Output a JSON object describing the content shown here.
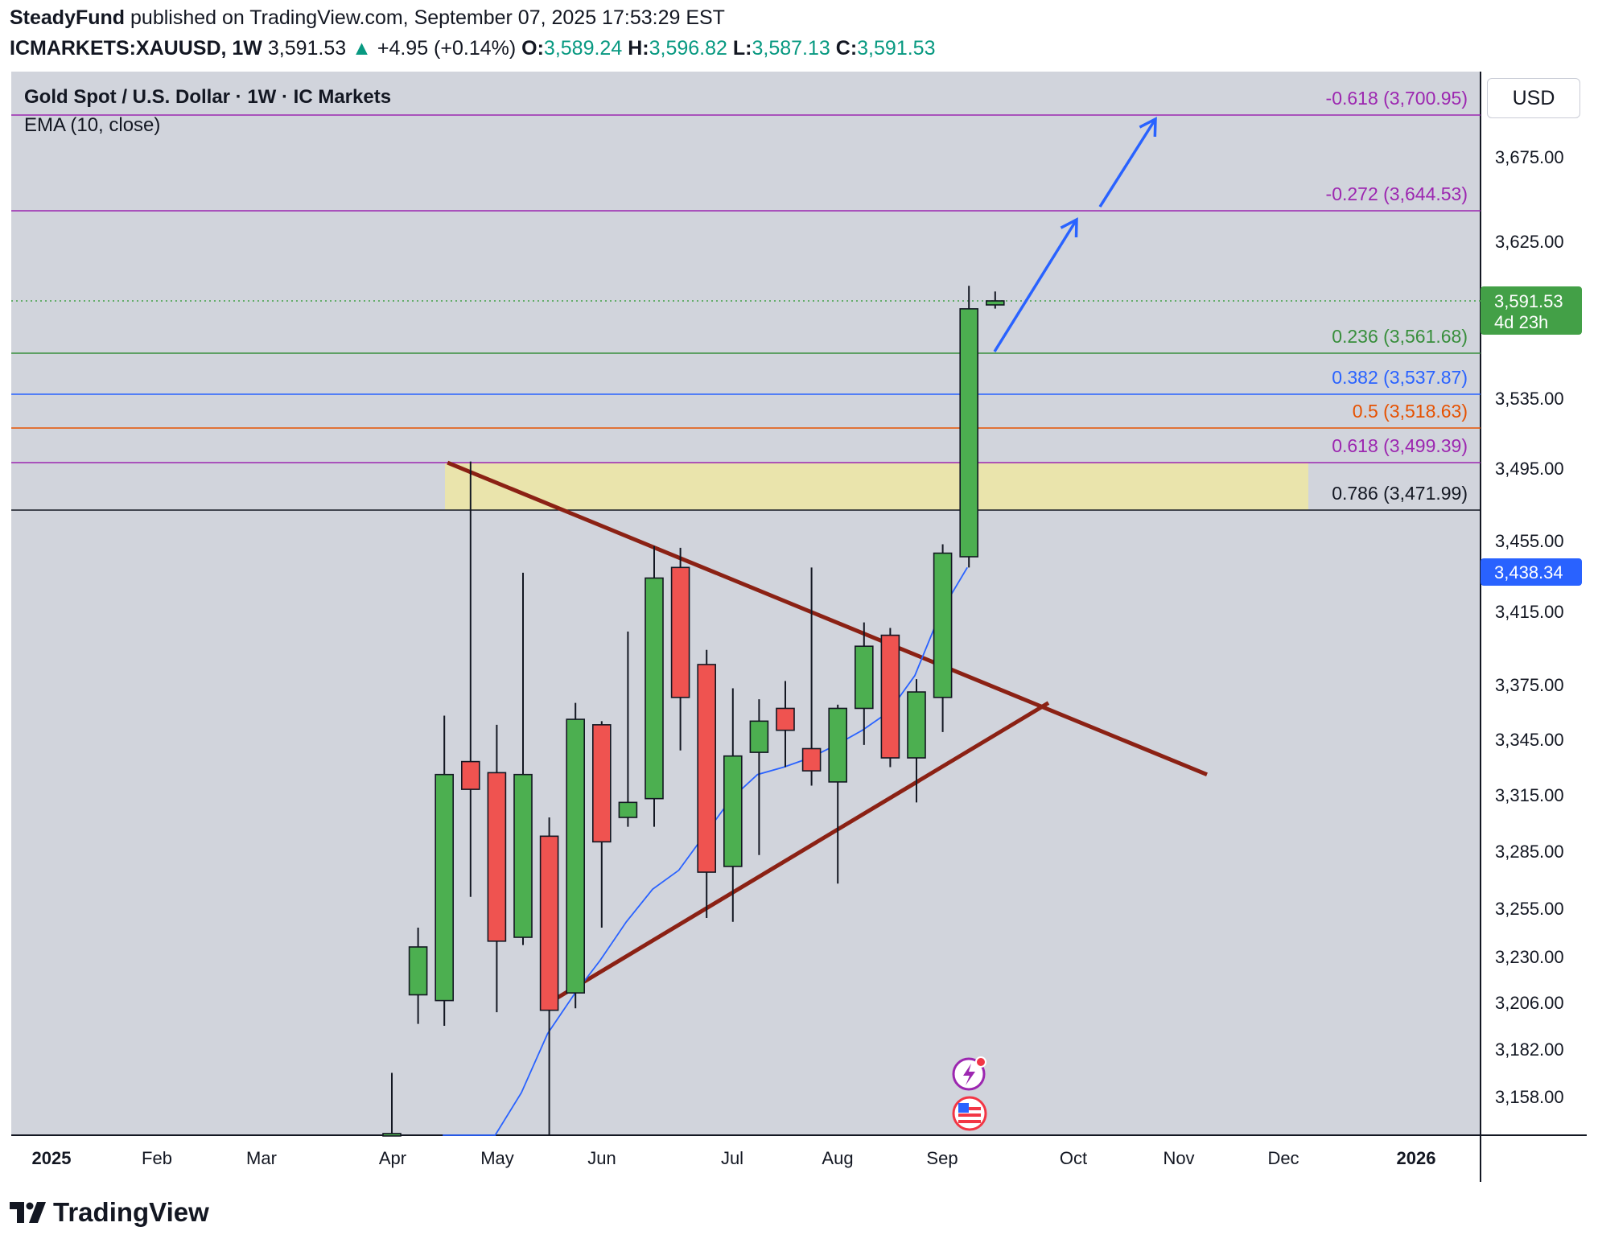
{
  "header": {
    "author": "SteadyFund",
    "published_text": " published on TradingView.com, September 07, 2025 17:53:29 EST",
    "symbol": "ICMARKETS:XAUUSD, 1W",
    "last": "3,591.53",
    "change_arrow": "▲",
    "change": "+4.95 (+0.14%)",
    "o_label": "O:",
    "o_val": "3,589.24",
    "h_label": "H:",
    "h_val": "3,596.82",
    "l_label": "L:",
    "l_val": "3,587.13",
    "c_label": "C:",
    "c_val": "3,591.53"
  },
  "chart_title": "Gold Spot / U.S. Dollar · 1W · IC Markets",
  "indicator_label": "EMA (10, close)",
  "currency_button": "USD",
  "price_badge": {
    "price": "3,591.53",
    "countdown": "4d 23h"
  },
  "ema_badge": "3,438.34",
  "footer": {
    "brand": "TradingView"
  },
  "colors": {
    "bull": "#4caf50",
    "bear": "#ef5350",
    "ema": "#2962ff",
    "trendline": "#8b2114",
    "zone": "#ece5a6",
    "background": "#d1d4dc"
  },
  "chart_data": {
    "type": "candlestick",
    "title": "Gold Spot / U.S. Dollar · 1W · IC Markets",
    "y_ticks": [
      "3,675.00",
      "3,625.00",
      "3,535.00",
      "3,495.00",
      "3,455.00",
      "3,415.00",
      "3,375.00",
      "3,345.00",
      "3,315.00",
      "3,285.00",
      "3,255.00",
      "3,230.00",
      "3,206.00",
      "3,182.00",
      "3,158.00"
    ],
    "x_ticks": [
      "2025",
      "Feb",
      "Mar",
      "Apr",
      "May",
      "Jun",
      "Jul",
      "Aug",
      "Sep",
      "Oct",
      "Nov",
      "Dec",
      "2026"
    ],
    "candles": [
      {
        "o": 3040,
        "h": 3170,
        "l": 3000,
        "c": 3140
      },
      {
        "o": 3210,
        "h": 3245,
        "l": 3195,
        "c": 3235
      },
      {
        "o": 3207,
        "h": 3358,
        "l": 3194,
        "c": 3326
      },
      {
        "o": 3333,
        "h": 3500,
        "l": 3261,
        "c": 3318
      },
      {
        "o": 3327,
        "h": 3353,
        "l": 3201,
        "c": 3238
      },
      {
        "o": 3240,
        "h": 3437,
        "l": 3236,
        "c": 3326
      },
      {
        "o": 3293,
        "h": 3303,
        "l": 3120,
        "c": 3202
      },
      {
        "o": 3211,
        "h": 3365,
        "l": 3203,
        "c": 3356
      },
      {
        "o": 3353,
        "h": 3355,
        "l": 3245,
        "c": 3290
      },
      {
        "o": 3303,
        "h": 3404,
        "l": 3298,
        "c": 3311
      },
      {
        "o": 3313,
        "h": 3452,
        "l": 3298,
        "c": 3434
      },
      {
        "o": 3440,
        "h": 3451,
        "l": 3339,
        "c": 3368
      },
      {
        "o": 3386,
        "h": 3394,
        "l": 3250,
        "c": 3274
      },
      {
        "o": 3277,
        "h": 3373,
        "l": 3248,
        "c": 3336
      },
      {
        "o": 3338,
        "h": 3367,
        "l": 3283,
        "c": 3355
      },
      {
        "o": 3362,
        "h": 3377,
        "l": 3330,
        "c": 3350
      },
      {
        "o": 3340,
        "h": 3440,
        "l": 3320,
        "c": 3328
      },
      {
        "o": 3322,
        "h": 3364,
        "l": 3268,
        "c": 3362
      },
      {
        "o": 3362,
        "h": 3409,
        "l": 3342,
        "c": 3396
      },
      {
        "o": 3402,
        "h": 3406,
        "l": 3330,
        "c": 3335
      },
      {
        "o": 3335,
        "h": 3378,
        "l": 3311,
        "c": 3371
      },
      {
        "o": 3368,
        "h": 3453,
        "l": 3349,
        "c": 3448
      },
      {
        "o": 3446,
        "h": 3600,
        "l": 3440,
        "c": 3587
      },
      {
        "o": 3589.24,
        "h": 3596.82,
        "l": 3587.13,
        "c": 3591.53
      }
    ],
    "ema": [
      3050,
      3085,
      3120,
      3160,
      3190,
      3210,
      3228,
      3248,
      3265,
      3275,
      3294,
      3313,
      3326,
      3330,
      3335,
      3342,
      3350,
      3360,
      3380,
      3415,
      3440
    ],
    "fib_levels": [
      {
        "label": "-0.618 (3,700.95)",
        "value": 3700.95,
        "color": "#9c27b0"
      },
      {
        "label": "-0.272 (3,644.53)",
        "value": 3644.53,
        "color": "#9c27b0"
      },
      {
        "label": "0.236 (3,561.68)",
        "value": 3561.68,
        "color": "#388e3c"
      },
      {
        "label": "0.382 (3,537.87)",
        "value": 3537.87,
        "color": "#2962ff"
      },
      {
        "label": "0.5 (3,518.63)",
        "value": 3518.63,
        "color": "#e65100"
      },
      {
        "label": "0.618 (3,499.39)",
        "value": 3499.39,
        "color": "#9c27b0"
      },
      {
        "label": "0.786 (3,471.99)",
        "value": 3471.99,
        "color": "#131722"
      }
    ]
  }
}
